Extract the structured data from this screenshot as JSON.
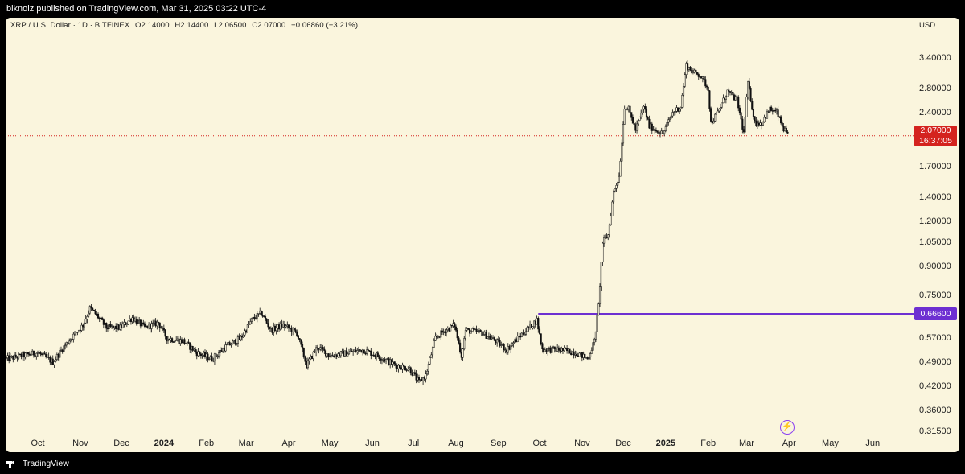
{
  "header": {
    "published_text": "blknoiz published on TradingView.com, Mar 31, 2025 03:22 UTC-4"
  },
  "legend": {
    "symbol": "XRP / U.S. Dollar · 1D · BITFINEX",
    "open": "O2.14000",
    "high": "H2.14400",
    "low": "L2.06500",
    "close": "C2.07000",
    "change": "−0.06860 (−3.21%)"
  },
  "price_axis": {
    "currency": "USD",
    "last_price": "2.07000",
    "countdown": "16:37:05",
    "level_label": "0.66600"
  },
  "footer": {
    "brand": "TradingView"
  },
  "colors": {
    "background": "#faf5dd",
    "candle": "#111111",
    "last_price_line": "#d4231e",
    "level_line": "#6d2fd1"
  },
  "chart_data": {
    "type": "candlestick",
    "symbol": "XRP / U.S. Dollar",
    "interval": "1D",
    "exchange": "BITFINEX",
    "scale": "log",
    "ylim": [
      0.3,
      4.0
    ],
    "y_ticks": [
      "3.40000",
      "2.80000",
      "2.40000",
      "1.70000",
      "1.40000",
      "1.20000",
      "1.05000",
      "0.90000",
      "0.75000",
      "0.57000",
      "0.49000",
      "0.42000",
      "0.36000",
      "0.31500"
    ],
    "x_ticks": [
      {
        "label": "Oct",
        "date": "2023-10-01",
        "year": false
      },
      {
        "label": "Nov",
        "date": "2023-11-01",
        "year": false
      },
      {
        "label": "Dec",
        "date": "2023-12-01",
        "year": false
      },
      {
        "label": "2024",
        "date": "2024-01-01",
        "year": true
      },
      {
        "label": "Feb",
        "date": "2024-02-01",
        "year": false
      },
      {
        "label": "Mar",
        "date": "2024-03-01",
        "year": false
      },
      {
        "label": "Apr",
        "date": "2024-04-01",
        "year": false
      },
      {
        "label": "May",
        "date": "2024-05-01",
        "year": false
      },
      {
        "label": "Jun",
        "date": "2024-06-01",
        "year": false
      },
      {
        "label": "Jul",
        "date": "2024-07-01",
        "year": false
      },
      {
        "label": "Aug",
        "date": "2024-08-01",
        "year": false
      },
      {
        "label": "Sep",
        "date": "2024-09-01",
        "year": false
      },
      {
        "label": "Oct",
        "date": "2024-10-01",
        "year": false
      },
      {
        "label": "Nov",
        "date": "2024-11-01",
        "year": false
      },
      {
        "label": "Dec",
        "date": "2024-12-01",
        "year": false
      },
      {
        "label": "2025",
        "date": "2025-01-01",
        "year": true
      },
      {
        "label": "Feb",
        "date": "2025-02-01",
        "year": false
      },
      {
        "label": "Mar",
        "date": "2025-03-01",
        "year": false
      },
      {
        "label": "Apr",
        "date": "2025-04-01",
        "year": false
      },
      {
        "label": "May",
        "date": "2025-05-01",
        "year": false
      },
      {
        "label": "Jun",
        "date": "2025-06-01",
        "year": false
      }
    ],
    "x_range": [
      "2023-09-08",
      "2025-06-30"
    ],
    "last_close": 2.07,
    "horizontal_level": {
      "value": 0.666,
      "from_date": "2024-09-30"
    },
    "price_path": [
      [
        "2023-09-08",
        0.5
      ],
      [
        "2023-09-20",
        0.51
      ],
      [
        "2023-10-01",
        0.52
      ],
      [
        "2023-10-12",
        0.49
      ],
      [
        "2023-10-20",
        0.54
      ],
      [
        "2023-10-25",
        0.57
      ],
      [
        "2023-11-03",
        0.62
      ],
      [
        "2023-11-08",
        0.69
      ],
      [
        "2023-11-13",
        0.66
      ],
      [
        "2023-11-20",
        0.61
      ],
      [
        "2023-11-30",
        0.61
      ],
      [
        "2023-12-09",
        0.65
      ],
      [
        "2023-12-18",
        0.61
      ],
      [
        "2023-12-28",
        0.63
      ],
      [
        "2024-01-03",
        0.57
      ],
      [
        "2024-01-15",
        0.56
      ],
      [
        "2024-01-25",
        0.52
      ],
      [
        "2024-02-05",
        0.5
      ],
      [
        "2024-02-15",
        0.54
      ],
      [
        "2024-02-26",
        0.57
      ],
      [
        "2024-03-05",
        0.64
      ],
      [
        "2024-03-12",
        0.67
      ],
      [
        "2024-03-19",
        0.6
      ],
      [
        "2024-03-28",
        0.62
      ],
      [
        "2024-04-07",
        0.59
      ],
      [
        "2024-04-14",
        0.48
      ],
      [
        "2024-04-22",
        0.54
      ],
      [
        "2024-05-01",
        0.51
      ],
      [
        "2024-05-15",
        0.52
      ],
      [
        "2024-05-25",
        0.53
      ],
      [
        "2024-06-05",
        0.51
      ],
      [
        "2024-06-18",
        0.48
      ],
      [
        "2024-06-28",
        0.47
      ],
      [
        "2024-07-05",
        0.43
      ],
      [
        "2024-07-10",
        0.45
      ],
      [
        "2024-07-17",
        0.57
      ],
      [
        "2024-07-24",
        0.6
      ],
      [
        "2024-07-31",
        0.62
      ],
      [
        "2024-08-05",
        0.51
      ],
      [
        "2024-08-08",
        0.6
      ],
      [
        "2024-08-20",
        0.59
      ],
      [
        "2024-08-30",
        0.56
      ],
      [
        "2024-09-07",
        0.53
      ],
      [
        "2024-09-17",
        0.58
      ],
      [
        "2024-09-29",
        0.64
      ],
      [
        "2024-10-03",
        0.53
      ],
      [
        "2024-10-15",
        0.53
      ],
      [
        "2024-10-28",
        0.52
      ],
      [
        "2024-11-05",
        0.5
      ],
      [
        "2024-11-10",
        0.56
      ],
      [
        "2024-11-13",
        0.7
      ],
      [
        "2024-11-16",
        1.05
      ],
      [
        "2024-11-20",
        1.1
      ],
      [
        "2024-11-24",
        1.45
      ],
      [
        "2024-11-28",
        1.6
      ],
      [
        "2024-12-02",
        2.5
      ],
      [
        "2024-12-05",
        2.45
      ],
      [
        "2024-12-10",
        2.15
      ],
      [
        "2024-12-16",
        2.5
      ],
      [
        "2024-12-20",
        2.2
      ],
      [
        "2024-12-30",
        2.1
      ],
      [
        "2025-01-06",
        2.4
      ],
      [
        "2025-01-12",
        2.5
      ],
      [
        "2025-01-16",
        3.25
      ],
      [
        "2025-01-21",
        3.1
      ],
      [
        "2025-01-26",
        3.05
      ],
      [
        "2025-02-01",
        2.8
      ],
      [
        "2025-02-03",
        2.25
      ],
      [
        "2025-02-08",
        2.4
      ],
      [
        "2025-02-15",
        2.75
      ],
      [
        "2025-02-22",
        2.6
      ],
      [
        "2025-02-27",
        2.1
      ],
      [
        "2025-03-02",
        2.9
      ],
      [
        "2025-03-07",
        2.25
      ],
      [
        "2025-03-12",
        2.25
      ],
      [
        "2025-03-18",
        2.45
      ],
      [
        "2025-03-23",
        2.4
      ],
      [
        "2025-03-27",
        2.2
      ],
      [
        "2025-03-31",
        2.07
      ]
    ]
  }
}
